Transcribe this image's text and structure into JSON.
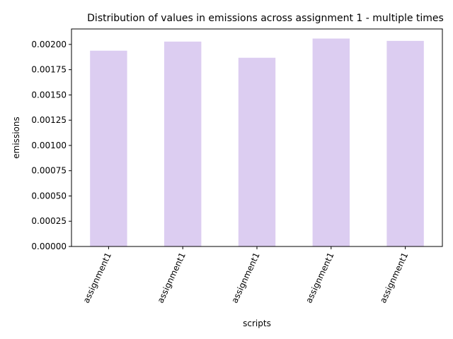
{
  "chart_data": {
    "type": "bar",
    "title": "Distribution of values in emissions across assignment 1 - multiple times",
    "xlabel": "scripts",
    "ylabel": "emissions",
    "categories": [
      "assignment1",
      "assignment1",
      "assignment1",
      "assignment1",
      "assignment1"
    ],
    "values": [
      0.001938,
      0.002028,
      0.001868,
      0.002058,
      0.002035
    ],
    "ylim": [
      0,
      0.002153
    ],
    "yticks": [
      "0.00000",
      "0.00025",
      "0.00050",
      "0.00075",
      "0.00100",
      "0.00125",
      "0.00150",
      "0.00175",
      "0.00200"
    ],
    "ytick_values": [
      0,
      0.00025,
      0.0005,
      0.00075,
      0.001,
      0.00125,
      0.0015,
      0.00175,
      0.002
    ],
    "bar_color": "#dccdf1",
    "grid": false,
    "legend": "none"
  }
}
